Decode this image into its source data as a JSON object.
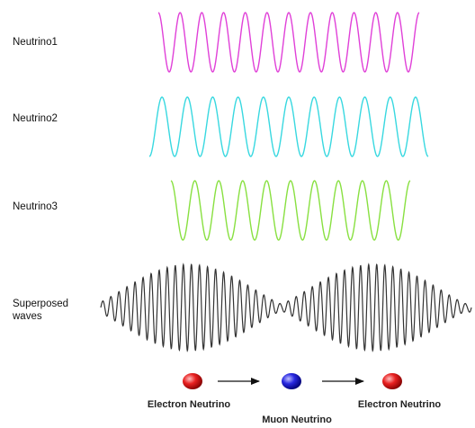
{
  "waves": [
    {
      "label": "Neutrino1",
      "color": "#e040d8",
      "cycles": 12
    },
    {
      "label": "Neutrino2",
      "color": "#38d8e0",
      "cycles": 11
    },
    {
      "label": "Neutrino3",
      "color": "#88e040",
      "cycles": 10
    }
  ],
  "superposed": {
    "label_line1": "Superposed",
    "label_line2": "waves",
    "color": "#333333"
  },
  "particles": [
    {
      "label": "Electron Neutrino",
      "color": "#e82020"
    },
    {
      "label": "Muon Neutrino",
      "color": "#2828e0"
    },
    {
      "label": "Electron Neutrino",
      "color": "#e82020"
    }
  ]
}
